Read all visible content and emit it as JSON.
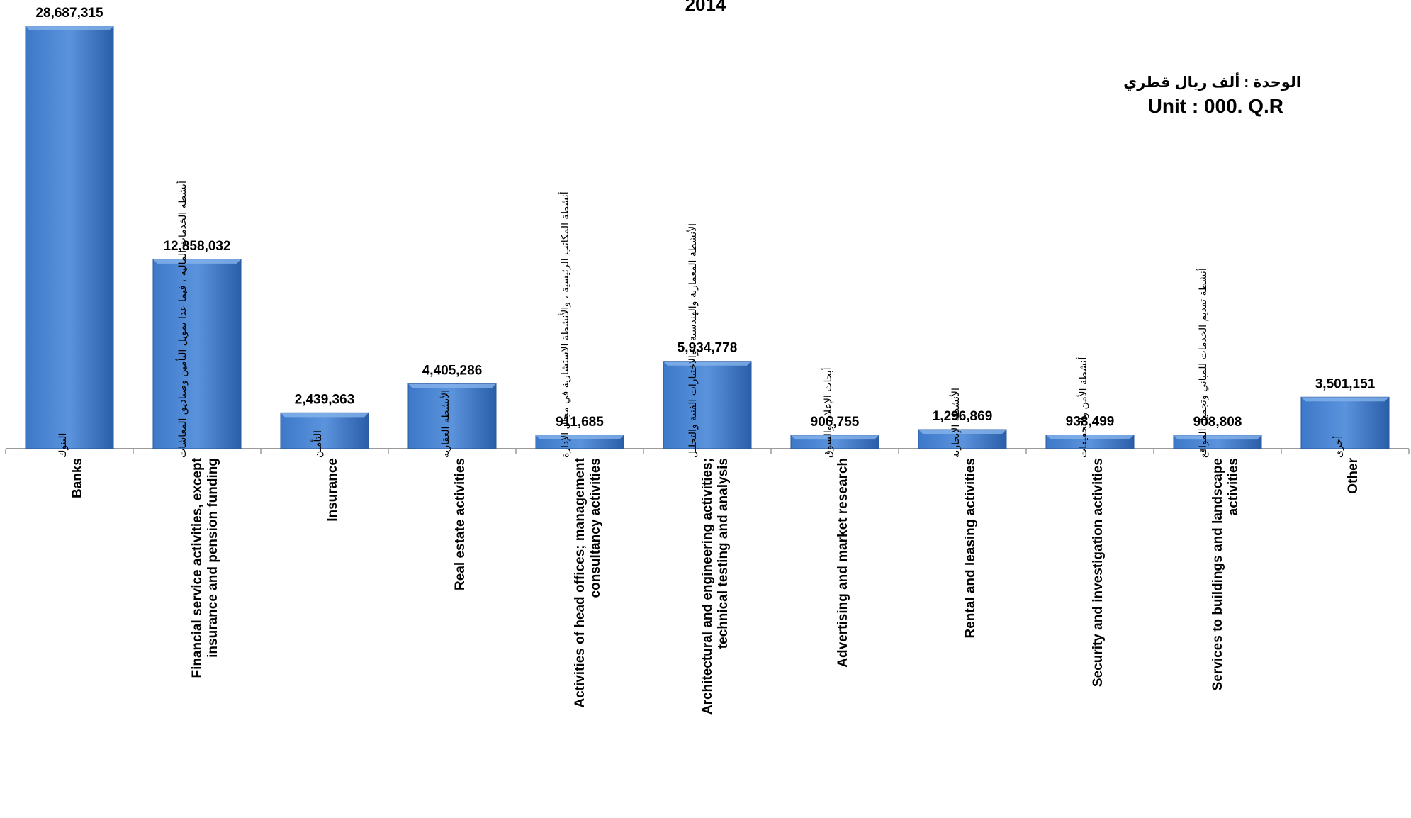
{
  "chart_data": {
    "type": "bar",
    "title": "2014",
    "unit_ar": "الوحدة :  ألف ريال قطري",
    "unit_en": "Unit : 000. Q.R",
    "grid": false,
    "legend": "none",
    "ylim": [
      0,
      28687315
    ],
    "categories": [
      {
        "en": "Banks",
        "ar": "البنوك"
      },
      {
        "en": "Financial service activities, except insurance and pension funding",
        "ar": "أنشطة الخدمات المالية ، فيما عدا تمويل التأمين وصناديق المعاشات"
      },
      {
        "en": "Insurance",
        "ar": "التأمين"
      },
      {
        "en": "Real estate activities",
        "ar": "الأنشطة العقارية"
      },
      {
        "en": "Activities of head offices; management consultancy activities",
        "ar": "أنشطة المكاتب الرئيسية ، والأنشطة الاستشارية في مجال الإدارة"
      },
      {
        "en": "Architectural and engineering activities; technical testing and analysis",
        "ar": "الأنشطة المعمارية والهندسية ، والاختبارات الفنية والتحليل"
      },
      {
        "en": "Advertising and market research",
        "ar": "أبحاث الإعلان والسوق"
      },
      {
        "en": "Rental and leasing activities",
        "ar": "الأنشطة الإيجارية"
      },
      {
        "en": "Security and investigation activities",
        "ar": "أنشطة الأمن والتحقيقات"
      },
      {
        "en": "Services to buildings and landscape activities",
        "ar": "أنشطة تقديم الخدمات للمباني وتجميل المواقع"
      },
      {
        "en": "Other",
        "ar": "أخرى"
      }
    ],
    "values": [
      28687315,
      12858032,
      2439363,
      4405286,
      911685,
      5934778,
      906755,
      1296869,
      938499,
      908808,
      3501151
    ],
    "value_labels": [
      "28,687,315",
      "12,858,032",
      "2,439,363",
      "4,405,286",
      "911,685",
      "5,934,778",
      "906,755",
      "1,296,869",
      "938,499",
      "908,808",
      "3,501,151"
    ],
    "colors": {
      "bar_top": "#5b93dc",
      "bar_mid": "#3d79c9",
      "bar_bottom": "#2a5ea8",
      "axis": "#9a9a9a"
    }
  }
}
